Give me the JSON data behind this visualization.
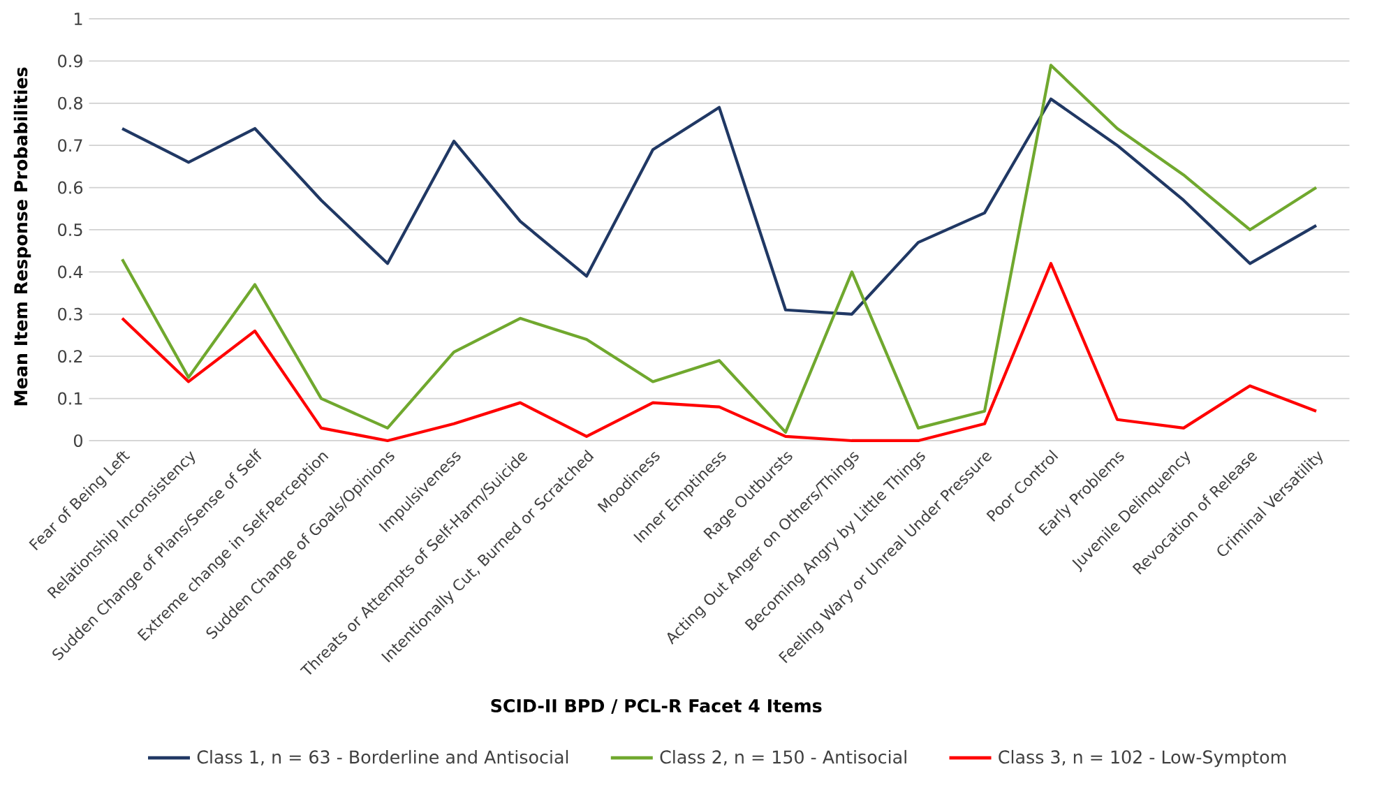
{
  "chart_data": {
    "type": "line",
    "xlabel": "SCID-II BPD / PCL-R Facet 4 Items",
    "ylabel": "Mean Item Response Probabilities",
    "categories": [
      "Fear of Being Left",
      "Relationship Inconsistency",
      "Sudden Change of Plans/Sense of Self",
      "Extreme change in Self-Perception",
      "Sudden Change of Goals/Opinions",
      "Impulsiveness",
      "Threats or Attempts of Self-Harm/Suicide",
      "Intentionally Cut, Burned or Scratched",
      "Moodiness",
      "Inner Emptiness",
      "Rage Outbursts",
      "Acting Out Anger on Others/Things",
      "Becoming Angry by Little Things",
      "Feeling Wary or Unreal Under Pressure",
      "Poor Control",
      "Early Problems",
      "Juvenile Delinquency",
      "Revocation of Release",
      "Criminal Versatility"
    ],
    "series": [
      {
        "name": "Class 1, n = 63 - Borderline and Antisocial",
        "color": "#203864",
        "values": [
          0.74,
          0.66,
          0.74,
          0.57,
          0.42,
          0.71,
          0.52,
          0.39,
          0.69,
          0.79,
          0.31,
          0.3,
          0.47,
          0.54,
          0.81,
          0.7,
          0.57,
          0.42,
          0.51
        ]
      },
      {
        "name": "Class 2, n = 150 - Antisocial",
        "color": "#70a82e",
        "values": [
          0.43,
          0.15,
          0.37,
          0.1,
          0.03,
          0.21,
          0.29,
          0.24,
          0.14,
          0.19,
          0.02,
          0.4,
          0.03,
          0.07,
          0.89,
          0.74,
          0.63,
          0.5,
          0.6
        ]
      },
      {
        "name": "Class 3, n = 102 - Low-Symptom",
        "color": "#ff0000",
        "values": [
          0.29,
          0.14,
          0.26,
          0.03,
          0.0,
          0.04,
          0.09,
          0.01,
          0.09,
          0.08,
          0.01,
          0.0,
          0.0,
          0.04,
          0.42,
          0.05,
          0.03,
          0.13,
          0.07
        ]
      }
    ],
    "ylim": [
      0,
      1
    ],
    "yticks": [
      0,
      0.1,
      0.2,
      0.3,
      0.4,
      0.5,
      0.6,
      0.7,
      0.8,
      0.9,
      1
    ],
    "grid": "y",
    "legend": "bottom",
    "marker": "none",
    "line_style": "solid"
  }
}
